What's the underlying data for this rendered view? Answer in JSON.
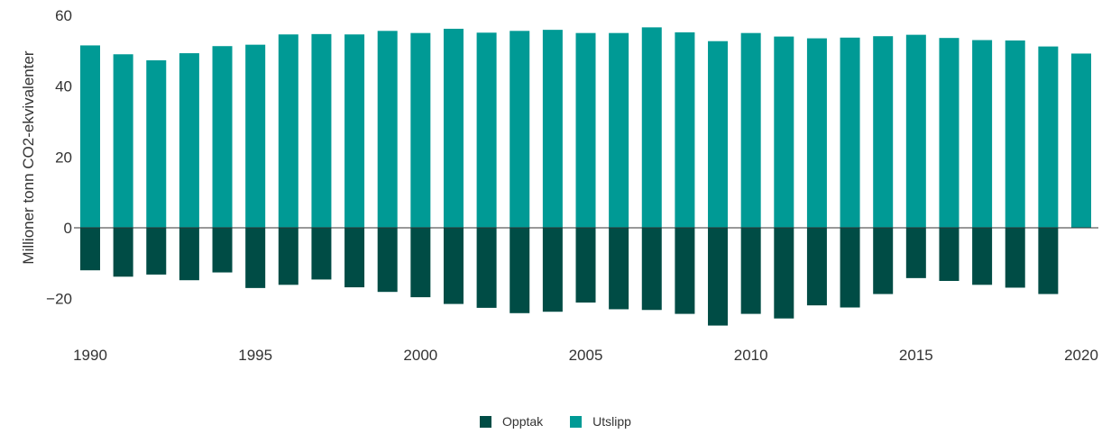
{
  "chart_data": {
    "type": "bar",
    "title": "",
    "xlabel": "",
    "ylabel": "Millioner tonn CO2-ekvivalenter",
    "ylim": [
      -30,
      60
    ],
    "yticks": [
      60,
      40,
      20,
      0,
      -20
    ],
    "xticks": [
      "1990",
      "1995",
      "2000",
      "2005",
      "2010",
      "2015",
      "2020"
    ],
    "stacked": true,
    "grid": false,
    "legend_position": "bottom-center",
    "categories": [
      "1990",
      "1991",
      "1992",
      "1993",
      "1994",
      "1995",
      "1996",
      "1997",
      "1998",
      "1999",
      "2000",
      "2001",
      "2002",
      "2003",
      "2004",
      "2005",
      "2006",
      "2007",
      "2008",
      "2009",
      "2010",
      "2011",
      "2012",
      "2013",
      "2014",
      "2015",
      "2016",
      "2017",
      "2018",
      "2019",
      "2020"
    ],
    "series": [
      {
        "name": "Opptak",
        "color": "#004c45",
        "values": [
          -12.0,
          -13.8,
          -13.2,
          -14.8,
          -12.6,
          -17.0,
          -16.1,
          -14.6,
          -16.8,
          -18.1,
          -19.6,
          -21.5,
          -22.6,
          -24.1,
          -23.7,
          -21.1,
          -23.0,
          -23.2,
          -24.3,
          -27.6,
          -24.3,
          -25.6,
          -21.9,
          -22.5,
          -18.7,
          -14.2,
          -15.0,
          -16.1,
          -16.9,
          -18.7,
          null
        ]
      },
      {
        "name": "Utslipp",
        "color": "#009a95",
        "values": [
          51.5,
          49.0,
          47.3,
          49.3,
          51.3,
          51.7,
          54.6,
          54.7,
          54.6,
          55.6,
          55.0,
          56.2,
          55.1,
          55.6,
          55.9,
          55.0,
          55.0,
          56.6,
          55.2,
          52.7,
          55.0,
          54.0,
          53.5,
          53.7,
          54.1,
          54.5,
          53.6,
          53.0,
          52.9,
          51.2,
          49.2
        ]
      }
    ]
  }
}
